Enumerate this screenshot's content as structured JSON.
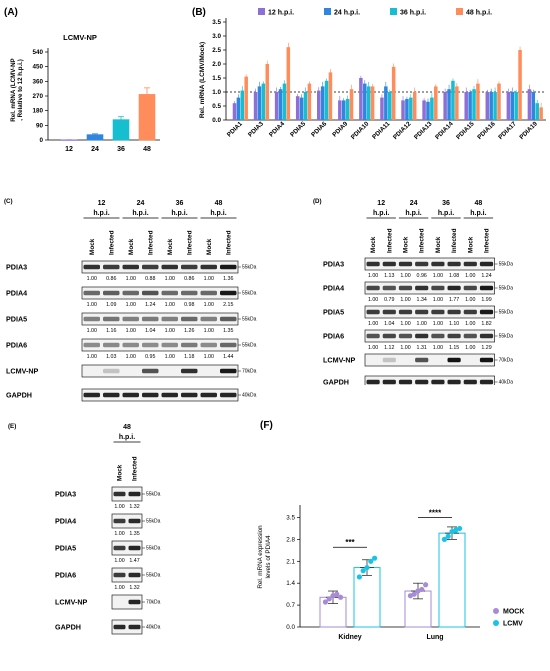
{
  "panels": {
    "A": {
      "letter": "(A)",
      "chart_data": {
        "type": "bar",
        "title": "LCMV-NP",
        "categories": [
          "12",
          "24",
          "36",
          "48"
        ],
        "values": [
          1,
          33,
          125,
          280
        ],
        "errors": [
          0.5,
          5,
          18,
          40
        ],
        "colors": [
          "#8e6fd6",
          "#2e86de",
          "#17becf",
          "#ff8c5a"
        ],
        "ylabel_line1": "Rel. mRNA (LCMV-NP",
        "ylabel_line2": ", Relative to 12 h.p.i.)",
        "yticks": [
          "0",
          "90",
          "180",
          "270",
          "360",
          "450",
          "540"
        ],
        "ylim": [
          0,
          540
        ]
      }
    },
    "B": {
      "letter": "(B)",
      "chart_data": {
        "type": "bar",
        "ylabel": "Rel. mRNA (LCMV/Mock)",
        "yticks": [
          "0.0",
          "0.5",
          "1.0",
          "1.5",
          "2.0",
          "2.5",
          "3.0",
          "3.5"
        ],
        "ylim": [
          0,
          3.5
        ],
        "reference_line": 1.0,
        "categories": [
          "PDIA1",
          "PDIA3",
          "PDIA4",
          "PDIA5",
          "PDIA6",
          "PDIA9",
          "PDIA10",
          "PDIA11",
          "PDIA12",
          "PDIA13",
          "PDIA14",
          "PDIA15",
          "PDIA16",
          "PDIA17",
          "PDIA19"
        ],
        "series": [
          {
            "name": "12 h.p.i.",
            "color": "#8e6fd6",
            "values": [
              0.6,
              1.0,
              1.0,
              0.85,
              1.05,
              0.7,
              1.5,
              0.8,
              0.7,
              0.7,
              1.0,
              1.0,
              1.0,
              1.0,
              1.1
            ]
          },
          {
            "name": "24 h.p.i.",
            "color": "#2e86de",
            "values": [
              0.8,
              1.2,
              1.1,
              0.8,
              1.2,
              0.7,
              1.3,
              1.2,
              0.75,
              0.65,
              1.1,
              1.0,
              1.0,
              1.0,
              1.0
            ]
          },
          {
            "name": "36 h.p.i.",
            "color": "#17becf",
            "values": [
              1.05,
              1.3,
              1.3,
              1.0,
              1.4,
              0.75,
              1.2,
              1.0,
              0.8,
              0.8,
              1.4,
              1.1,
              1.0,
              1.0,
              0.6
            ]
          },
          {
            "name": "48 h.p.i.",
            "color": "#ff8c5a",
            "values": [
              1.55,
              2.0,
              2.6,
              1.3,
              1.7,
              1.1,
              1.2,
              1.9,
              1.0,
              1.2,
              1.2,
              1.3,
              1.3,
              2.5,
              0.45
            ]
          }
        ]
      }
    },
    "C": {
      "letter": "(C)",
      "timepoints": [
        "12",
        "24",
        "36",
        "48"
      ],
      "hpi": "h.p.i.",
      "lanes": [
        "Mock",
        "Infected",
        "Mock",
        "Infected",
        "Mock",
        "Infected",
        "Mock",
        "Infected"
      ],
      "rows": [
        {
          "name": "PDIA3",
          "kda": "55kDa",
          "ratios": [
            "1.00",
            "0.86",
            "1.00",
            "0.88",
            "1.00",
            "0.86",
            "1.00",
            "1.36"
          ],
          "intensity": [
            0.85,
            0.8,
            0.85,
            0.8,
            0.85,
            0.8,
            0.85,
            0.95
          ]
        },
        {
          "name": "PDIA4",
          "kda": "55kDa",
          "ratios": [
            "1.00",
            "1.09",
            "1.00",
            "1.24",
            "1.00",
            "0.98",
            "1.00",
            "2.15"
          ],
          "intensity": [
            0.6,
            0.65,
            0.6,
            0.7,
            0.6,
            0.6,
            0.6,
            0.95
          ]
        },
        {
          "name": "PDIA5",
          "kda": "55kDa",
          "ratios": [
            "1.00",
            "1.16",
            "1.00",
            "1.04",
            "1.00",
            "1.26",
            "1.00",
            "1.35"
          ],
          "intensity": [
            0.5,
            0.55,
            0.5,
            0.52,
            0.5,
            0.6,
            0.5,
            0.65
          ]
        },
        {
          "name": "PDIA6",
          "kda": "55kDa",
          "ratios": [
            "1.00",
            "1.03",
            "1.00",
            "0.95",
            "1.00",
            "1.18",
            "1.00",
            "1.44"
          ],
          "intensity": [
            0.45,
            0.46,
            0.45,
            0.44,
            0.45,
            0.52,
            0.45,
            0.6
          ]
        },
        {
          "name": "LCMV-NP",
          "kda": "70kDa",
          "ratios": [],
          "intensity": [
            0,
            0.2,
            0,
            0.7,
            0,
            0.85,
            0,
            0.95
          ]
        },
        {
          "name": "GAPDH",
          "kda": "40kDa",
          "ratios": [],
          "intensity": [
            0.9,
            0.9,
            0.9,
            0.9,
            0.9,
            0.9,
            0.9,
            0.9
          ]
        }
      ]
    },
    "D": {
      "letter": "(D)",
      "timepoints": [
        "12",
        "24",
        "36",
        "48"
      ],
      "hpi": "h.p.i.",
      "lanes": [
        "Mock",
        "Infected",
        "Mock",
        "Infected",
        "Mock",
        "Infected",
        "Mock",
        "Infected"
      ],
      "rows": [
        {
          "name": "PDIA3",
          "kda": "55kDa",
          "ratios": [
            "1.00",
            "1.13",
            "1.00",
            "0.96",
            "1.00",
            "1.08",
            "1.00",
            "1.24"
          ],
          "intensity": [
            0.85,
            0.85,
            0.85,
            0.82,
            0.85,
            0.85,
            0.85,
            0.9
          ]
        },
        {
          "name": "PDIA4",
          "kda": "55kDa",
          "ratios": [
            "1.00",
            "0.79",
            "1.00",
            "1.34",
            "1.00",
            "1.77",
            "1.00",
            "1.99"
          ],
          "intensity": [
            0.75,
            0.7,
            0.75,
            0.85,
            0.75,
            0.9,
            0.75,
            0.95
          ]
        },
        {
          "name": "PDIA5",
          "kda": "55kDa",
          "ratios": [
            "1.00",
            "1.04",
            "1.00",
            "1.00",
            "1.00",
            "1.10",
            "1.00",
            "1.82"
          ],
          "intensity": [
            0.8,
            0.8,
            0.8,
            0.8,
            0.8,
            0.82,
            0.8,
            0.95
          ]
        },
        {
          "name": "PDIA6",
          "kda": "55kDa",
          "ratios": [
            "1.00",
            "1.12",
            "1.00",
            "1.31",
            "1.00",
            "1.15",
            "1.00",
            "1.29"
          ],
          "intensity": [
            0.7,
            0.75,
            0.7,
            0.85,
            0.7,
            0.78,
            0.7,
            0.85
          ]
        },
        {
          "name": "LCMV-NP",
          "kda": "70kDa",
          "ratios": [],
          "intensity": [
            0,
            0.2,
            0,
            0.7,
            0,
            0.98,
            0,
            0.98
          ]
        },
        {
          "name": "GAPDH",
          "kda": "40kDa",
          "ratios": [],
          "intensity": [
            0.9,
            0.9,
            0.9,
            0.9,
            0.9,
            0.9,
            0.9,
            0.9
          ]
        }
      ]
    },
    "E": {
      "letter": "(E)",
      "timepoints": [
        "48"
      ],
      "hpi": "h.p.i.",
      "lanes": [
        "Mock",
        "Infected"
      ],
      "rows": [
        {
          "name": "PDIA3",
          "kda": "55kDa",
          "ratios": [
            "1.00",
            "1.32"
          ],
          "intensity": [
            0.85,
            0.9
          ]
        },
        {
          "name": "PDIA4",
          "kda": "55kDa",
          "ratios": [
            "1.00",
            "1.35"
          ],
          "intensity": [
            0.8,
            0.88
          ]
        },
        {
          "name": "PDIA5",
          "kda": "55kDa",
          "ratios": [
            "1.00",
            "1.47"
          ],
          "intensity": [
            0.8,
            0.9
          ]
        },
        {
          "name": "PDIA6",
          "kda": "55kDa",
          "ratios": [
            "1.00",
            "1.32"
          ],
          "intensity": [
            0.8,
            0.88
          ]
        },
        {
          "name": "LCMV-NP",
          "kda": "70kDa",
          "ratios": [],
          "intensity": [
            0,
            0.9
          ]
        },
        {
          "name": "GAPDH",
          "kda": "40kDa",
          "ratios": [],
          "intensity": [
            0.88,
            0.88
          ]
        }
      ]
    },
    "F": {
      "letter": "(F)",
      "chart_data": {
        "type": "bar",
        "ylabel_line1": "Rel. mRNA expression",
        "ylabel_line2": "levels of PDIA4",
        "yticks": [
          "0.0",
          "0.7",
          "1.4",
          "2.1",
          "2.8",
          "3.5"
        ],
        "ylim": [
          0,
          3.9
        ],
        "categories": [
          "Kidney",
          "Lung"
        ],
        "series": [
          {
            "name": "MOCK",
            "color": "#a78bd6",
            "values": [
              0.95,
              1.15
            ],
            "errors": [
              0.2,
              0.25
            ],
            "points": [
              [
                0.8,
                0.9,
                1.0,
                1.05,
                0.95
              ],
              [
                1.0,
                1.05,
                1.15,
                1.2,
                1.35
              ]
            ]
          },
          {
            "name": "LCMV",
            "color": "#19c3e6",
            "values": [
              1.9,
              3.0
            ],
            "errors": [
              0.25,
              0.2
            ],
            "points": [
              [
                1.6,
                1.8,
                1.9,
                2.1,
                2.2
              ],
              [
                2.8,
                2.9,
                3.05,
                3.1,
                3.15
              ]
            ]
          }
        ],
        "significance": [
          "***",
          "****"
        ]
      }
    }
  }
}
